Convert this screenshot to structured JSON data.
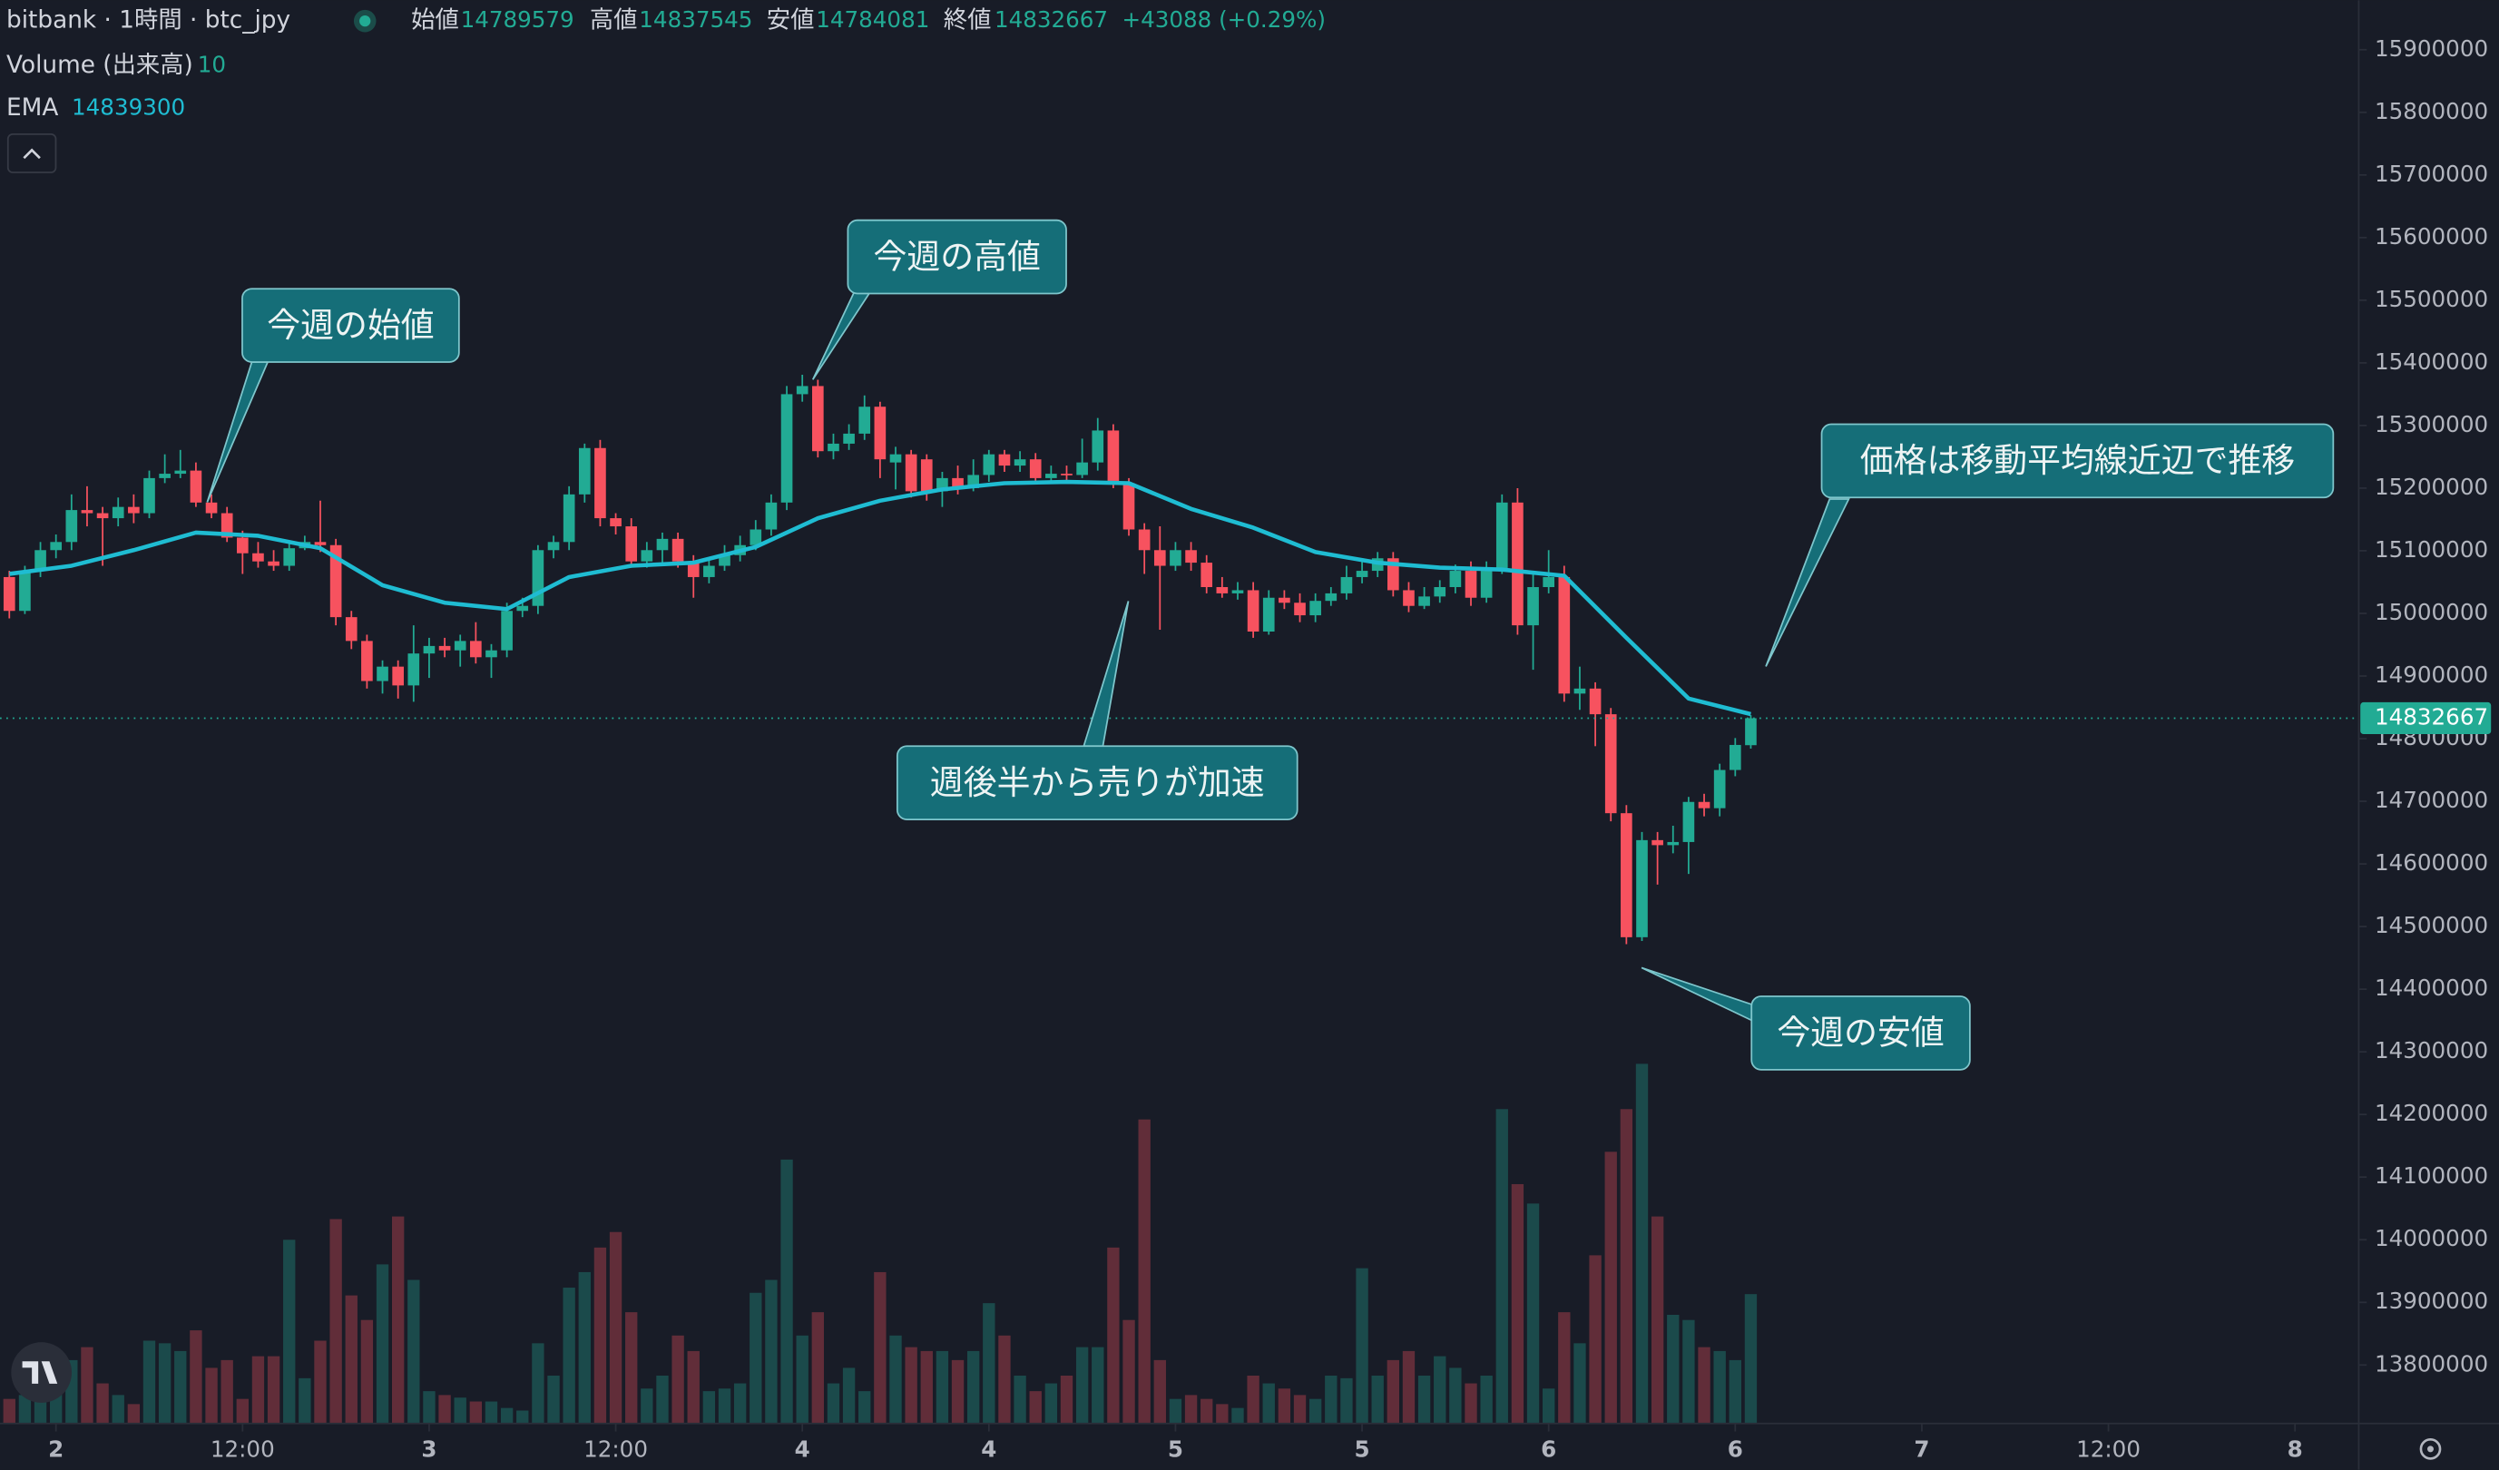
{
  "chart_data": {
    "type": "candlestick",
    "title": "bitbank · 1時間 · btc_jpy",
    "ohlc_labels": [
      "始値",
      "高値",
      "安値",
      "終値"
    ],
    "change": "+43088 (+0.29%)",
    "up_color": "#22ab94",
    "down_color": "#f7525f",
    "x": [
      -3,
      -2,
      -1,
      0,
      1,
      2,
      3,
      4,
      5,
      6,
      7,
      8,
      9,
      10,
      11,
      12,
      13,
      14,
      15,
      16,
      17,
      18,
      19,
      20,
      21,
      22,
      23,
      24,
      25,
      26,
      27,
      28,
      29,
      30,
      31,
      32,
      33,
      34,
      35,
      36,
      37,
      38,
      39,
      40,
      41,
      42,
      43,
      44,
      45,
      46,
      47,
      48,
      49,
      50,
      51,
      52,
      53,
      54,
      55,
      56,
      57,
      58,
      59,
      60,
      61,
      62,
      63,
      64,
      65,
      66,
      67,
      68,
      69,
      70,
      71,
      72,
      73,
      74,
      75,
      76,
      77,
      78,
      79,
      80,
      81,
      82,
      83,
      84,
      85,
      86,
      87,
      88,
      89,
      90,
      91,
      92,
      93,
      94,
      95,
      96,
      97,
      98,
      99,
      100,
      101,
      102,
      103,
      104,
      105,
      106,
      107,
      108,
      109
    ],
    "open": [
      15058000,
      15004000,
      15068000,
      15101000,
      15114000,
      15165000,
      15160000,
      15152000,
      15170000,
      15160000,
      15216000,
      15223000,
      15228000,
      15177000,
      15160000,
      15121000,
      15096000,
      15083000,
      15076000,
      15104000,
      15114000,
      15109000,
      14994000,
      14956000,
      14892000,
      14915000,
      14885000,
      14936000,
      14948000,
      14941000,
      14956000,
      14930000,
      14941000,
      15004000,
      15012000,
      15101000,
      15114000,
      15190000,
      15264000,
      15152000,
      15139000,
      15083000,
      15101000,
      15119000,
      15083000,
      15058000,
      15076000,
      15093000,
      15109000,
      15134000,
      15177000,
      15350000,
      15363000,
      15259000,
      15271000,
      15287000,
      15330000,
      15241000,
      15254000,
      15246000,
      15195000,
      15216000,
      15200000,
      15221000,
      15254000,
      15236000,
      15246000,
      15216000,
      15223000,
      15221000,
      15241000,
      15292000,
      15208000,
      15134000,
      15101000,
      15076000,
      15101000,
      15081000,
      15042000,
      15032000,
      15037000,
      14971000,
      15025000,
      15017000,
      14997000,
      15020000,
      15032000,
      15058000,
      15068000,
      15088000,
      15037000,
      15012000,
      15027000,
      15042000,
      15068000,
      15025000,
      15068000,
      15177000,
      14981000,
      15042000,
      15058000,
      14872000,
      14880000,
      14839000,
      14681000,
      14483000,
      14638000,
      14630000,
      14635000,
      14699000,
      14689000,
      14750000,
      14789579
    ],
    "high": [
      15068000,
      15076000,
      15114000,
      15126000,
      15190000,
      15203000,
      15170000,
      15185000,
      15190000,
      15228000,
      15254000,
      15261000,
      15241000,
      15190000,
      15170000,
      15132000,
      15114000,
      15101000,
      15114000,
      15124000,
      15180000,
      15119000,
      15004000,
      14966000,
      14925000,
      14925000,
      14981000,
      14961000,
      14961000,
      14966000,
      14986000,
      14951000,
      15017000,
      15025000,
      15109000,
      15124000,
      15203000,
      15271000,
      15277000,
      15160000,
      15152000,
      15114000,
      15129000,
      15129000,
      15093000,
      15088000,
      15109000,
      15124000,
      15149000,
      15190000,
      15363000,
      15381000,
      15373000,
      15287000,
      15302000,
      15348000,
      15338000,
      15266000,
      15261000,
      15254000,
      15226000,
      15236000,
      15246000,
      15261000,
      15261000,
      15259000,
      15256000,
      15236000,
      15236000,
      15279000,
      15312000,
      15302000,
      15216000,
      15144000,
      15139000,
      15114000,
      15114000,
      15093000,
      15058000,
      15050000,
      15050000,
      15037000,
      15037000,
      15032000,
      15032000,
      15042000,
      15076000,
      15083000,
      15098000,
      15098000,
      15050000,
      15042000,
      15053000,
      15078000,
      15083000,
      15083000,
      15190000,
      15200000,
      15063000,
      15101000,
      15076000,
      14915000,
      14890000,
      14849000,
      14694000,
      14651000,
      14651000,
      14661000,
      14707000,
      14712000,
      14760000,
      14801000,
      14837545
    ],
    "low": [
      14992000,
      14999000,
      15058000,
      15088000,
      15101000,
      15139000,
      15076000,
      15139000,
      15144000,
      15152000,
      15208000,
      15216000,
      15170000,
      15152000,
      15114000,
      15063000,
      15073000,
      15068000,
      15068000,
      15101000,
      15098000,
      14981000,
      14943000,
      14880000,
      14872000,
      14864000,
      14859000,
      14897000,
      14930000,
      14915000,
      14920000,
      14897000,
      14930000,
      14994000,
      14999000,
      15088000,
      15101000,
      15177000,
      15139000,
      15126000,
      15073000,
      15073000,
      15076000,
      15073000,
      15025000,
      15048000,
      15068000,
      15083000,
      15101000,
      15124000,
      15165000,
      15338000,
      15249000,
      15246000,
      15261000,
      15277000,
      15216000,
      15198000,
      15185000,
      15180000,
      15170000,
      15190000,
      15195000,
      15210000,
      15226000,
      15226000,
      15208000,
      15210000,
      15210000,
      15216000,
      15228000,
      15200000,
      15124000,
      15063000,
      14974000,
      15068000,
      15068000,
      15032000,
      15025000,
      15022000,
      14961000,
      14966000,
      15007000,
      14986000,
      14986000,
      15012000,
      15022000,
      15048000,
      15058000,
      15027000,
      15002000,
      15007000,
      15017000,
      15032000,
      15012000,
      15017000,
      15063000,
      14966000,
      14910000,
      15032000,
      14859000,
      14846000,
      14788000,
      14668000,
      14472000,
      14477000,
      14567000,
      14617000,
      14584000,
      14676000,
      14676000,
      14740000,
      14784081
    ],
    "close": [
      15004000,
      15068000,
      15101000,
      15114000,
      15165000,
      15160000,
      15152000,
      15170000,
      15160000,
      15216000,
      15223000,
      15228000,
      15177000,
      15160000,
      15121000,
      15096000,
      15083000,
      15076000,
      15104000,
      15114000,
      15109000,
      14994000,
      14956000,
      14892000,
      14915000,
      14885000,
      14936000,
      14948000,
      14941000,
      14956000,
      14930000,
      14941000,
      15004000,
      15012000,
      15101000,
      15114000,
      15190000,
      15264000,
      15152000,
      15139000,
      15083000,
      15101000,
      15119000,
      15083000,
      15058000,
      15076000,
      15093000,
      15109000,
      15134000,
      15177000,
      15350000,
      15363000,
      15259000,
      15271000,
      15287000,
      15330000,
      15246000,
      15254000,
      15195000,
      15195000,
      15216000,
      15200000,
      15221000,
      15254000,
      15236000,
      15246000,
      15216000,
      15223000,
      15221000,
      15241000,
      15292000,
      15208000,
      15134000,
      15101000,
      15076000,
      15101000,
      15081000,
      15042000,
      15032000,
      15037000,
      14971000,
      15025000,
      15017000,
      14997000,
      15020000,
      15032000,
      15058000,
      15068000,
      15088000,
      15037000,
      15012000,
      15027000,
      15042000,
      15068000,
      15025000,
      15068000,
      15177000,
      14981000,
      15042000,
      15058000,
      14872000,
      14880000,
      14839000,
      14681000,
      14483000,
      14638000,
      14630000,
      14635000,
      14699000,
      14689000,
      14750000,
      14790000,
      14832667
    ],
    "volume": {
      "name": "Volume (出来高)",
      "ylim": [
        0,
        110
      ],
      "values": [
        1.9,
        2.2,
        5.6,
        3.5,
        4.9,
        5.9,
        3.1,
        2.2,
        1.5,
        6.4,
        6.2,
        5.6,
        7.2,
        4.3,
        4.9,
        1.9,
        5.2,
        5.2,
        14.2,
        3.5,
        6.4,
        15.8,
        9.9,
        8.0,
        12.3,
        16.0,
        11.1,
        2.5,
        2.2,
        2.0,
        1.7,
        1.7,
        1.2,
        1.0,
        6.2,
        3.7,
        10.5,
        11.7,
        13.6,
        14.8,
        8.6,
        2.7,
        3.7,
        6.8,
        5.6,
        2.5,
        2.7,
        3.1,
        10.1,
        11.1,
        20.4,
        6.8,
        8.6,
        3.1,
        4.3,
        2.5,
        11.7,
        6.8,
        5.9,
        5.6,
        5.6,
        4.9,
        5.6,
        9.3,
        6.8,
        3.7,
        2.5,
        3.1,
        3.7,
        5.9,
        5.9,
        13.6,
        8.0,
        23.5,
        4.9,
        1.9,
        2.2,
        1.9,
        1.5,
        1.2,
        3.7,
        3.1,
        2.7,
        2.2,
        1.9,
        3.7,
        3.5,
        12.0,
        3.7,
        4.9,
        5.6,
        3.7,
        5.2,
        4.3,
        3.1,
        3.7,
        24.3,
        18.5,
        17.0,
        2.7,
        8.6,
        6.2,
        13.0,
        21.0,
        24.3,
        27.8,
        16.0,
        8.4,
        8.0,
        5.9,
        5.6,
        4.9,
        10
      ]
    },
    "ema": {
      "name": "EMA",
      "color": "#1fbcd2",
      "x": [
        -3,
        1,
        5,
        9,
        13,
        17,
        21,
        25,
        29,
        33,
        37,
        41,
        45,
        49,
        53,
        57,
        61,
        65,
        69,
        73,
        77,
        81,
        85,
        89,
        93,
        97,
        101,
        105,
        109
      ],
      "values": [
        15063000,
        15076000,
        15101000,
        15129000,
        15124000,
        15104000,
        15045000,
        15017000,
        15007000,
        15058000,
        15076000,
        15081000,
        15106000,
        15152000,
        15180000,
        15198000,
        15208000,
        15210000,
        15208000,
        15167000,
        15137000,
        15098000,
        15081000,
        15073000,
        15070000,
        15060000,
        14961000,
        14864000,
        14839300
      ]
    },
    "xlim": [
      -3.6,
      148.1
    ],
    "xticks": [
      {
        "value": 0,
        "label": "2"
      },
      {
        "value": 12,
        "label": "12:00"
      },
      {
        "value": 24,
        "label": "3"
      },
      {
        "value": 36,
        "label": "12:00"
      },
      {
        "value": 48,
        "label": "4"
      },
      {
        "value": 60,
        "label": "4"
      },
      {
        "value": 72,
        "label": "5"
      },
      {
        "value": 84,
        "label": "5"
      },
      {
        "value": 96,
        "label": "6"
      },
      {
        "value": 108,
        "label": "6"
      },
      {
        "value": 120,
        "label": "7"
      },
      {
        "value": 132,
        "label": "12:00"
      },
      {
        "value": 144,
        "label": "8"
      }
    ],
    "ylim": [
      13706600,
      15978900
    ],
    "yticks": [
      15900000,
      15800000,
      15700000,
      15600000,
      15500000,
      15400000,
      15300000,
      15200000,
      15100000,
      15000000,
      14900000,
      14800000,
      14700000,
      14600000,
      14500000,
      14400000,
      14300000,
      14200000,
      14100000,
      14000000,
      13900000,
      13800000
    ],
    "annotations": [
      {
        "text": "今週の始値"
      },
      {
        "text": "今週の高値"
      },
      {
        "text": "週後半から売りが加速"
      },
      {
        "text": "価格は移動平均線近辺で推移"
      },
      {
        "text": "今週の安値"
      }
    ]
  }
}
